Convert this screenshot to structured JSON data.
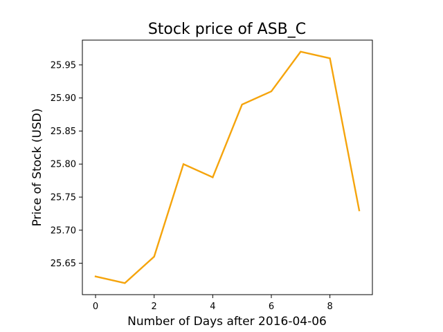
{
  "chart_data": {
    "type": "line",
    "title": "Stock price of ASB_C",
    "xlabel": "Number of Days after 2016-04-06",
    "ylabel": "Price of Stock (USD)",
    "x": [
      0,
      1,
      2,
      3,
      4,
      5,
      6,
      7,
      8,
      9
    ],
    "series": [
      {
        "values": [
          25.63,
          25.62,
          25.66,
          25.8,
          25.78,
          25.89,
          25.91,
          25.97,
          25.96,
          25.73
        ]
      }
    ],
    "xlim": [
      -0.45,
      9.45
    ],
    "ylim": [
      25.6025,
      25.9875
    ],
    "xticks": [
      0,
      2,
      4,
      6,
      8
    ],
    "yticks": [
      25.65,
      25.7,
      25.75,
      25.8,
      25.85,
      25.9,
      25.95
    ],
    "xtick_labels": [
      "0",
      "2",
      "4",
      "6",
      "8"
    ],
    "ytick_labels": [
      "25.65",
      "25.70",
      "25.75",
      "25.80",
      "25.85",
      "25.90",
      "25.95"
    ],
    "grid": false,
    "line_color": "#f5a40c",
    "axis_color": "#000000"
  }
}
